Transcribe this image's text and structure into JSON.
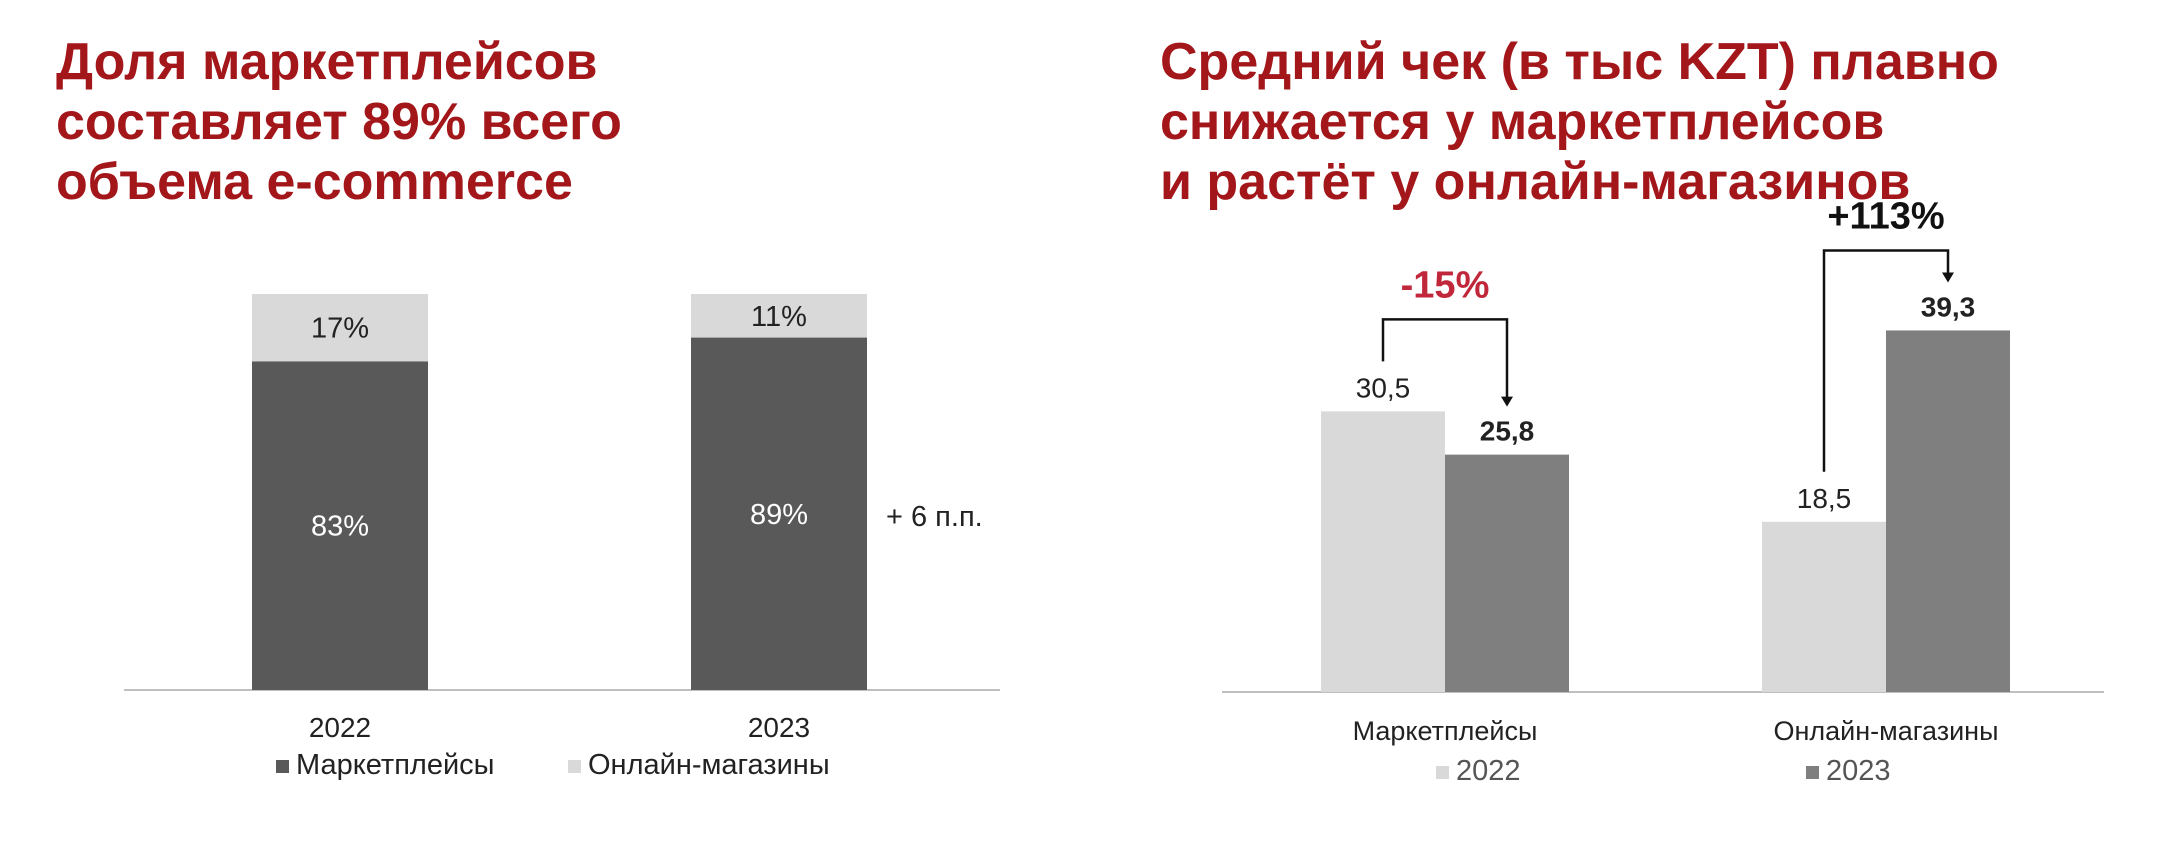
{
  "colors": {
    "title": "#a3171b",
    "marketplaces_stack": "#595959",
    "online_stack": "#d9d9d9",
    "bar_2022": "#d9d9d9",
    "bar_2023": "#7f7f7f",
    "negative_change": "#c0273a",
    "text": "#222222"
  },
  "chart_data": [
    {
      "type": "bar",
      "stacked": true,
      "title": "Доля маркетплейсов\nсоставляет 89% всего\nобъема e-commerce",
      "categories": [
        "2022",
        "2023"
      ],
      "series": [
        {
          "name": "Маркетплейсы",
          "values": [
            83,
            89
          ],
          "labels": [
            "83%",
            "89%"
          ]
        },
        {
          "name": "Онлайн-магазины",
          "values": [
            17,
            11
          ],
          "labels": [
            "17%",
            "11%"
          ]
        }
      ],
      "ylim": [
        0,
        100
      ],
      "annotation": "+ 6 п.п.",
      "legend": "bottom",
      "grid": false
    },
    {
      "type": "bar",
      "title": "Средний чек (в тыс KZT) плавно\nснижается у маркетплейсов\nи растёт у онлайн-магазинов",
      "categories": [
        "Маркетплейсы",
        "Онлайн-магазины"
      ],
      "series": [
        {
          "name": "2022",
          "values": [
            30.5,
            18.5
          ],
          "labels": [
            "30,5",
            "18,5"
          ]
        },
        {
          "name": "2023",
          "values": [
            25.8,
            39.3
          ],
          "labels": [
            "25,8",
            "39,3"
          ]
        }
      ],
      "ylim": [
        0,
        45
      ],
      "changes": [
        "-15%",
        "+113%"
      ],
      "legend": "bottom",
      "grid": false
    }
  ]
}
